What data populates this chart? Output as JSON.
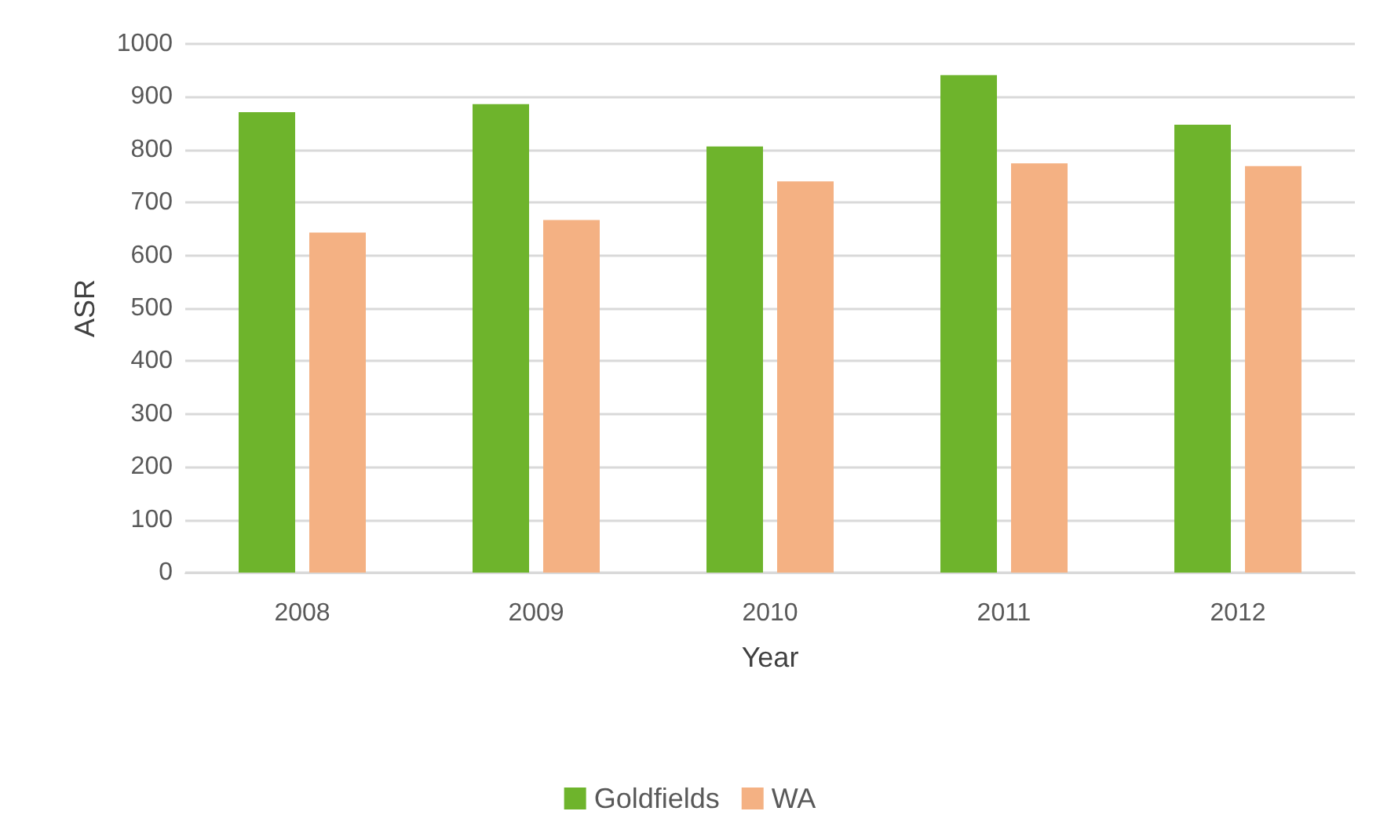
{
  "chart_data": {
    "type": "bar",
    "xlabel": "Year",
    "ylabel": "ASR",
    "categories": [
      "2008",
      "2009",
      "2010",
      "2011",
      "2012"
    ],
    "series": [
      {
        "name": "Goldfields",
        "color": "#6eb42c",
        "values": [
          871,
          886,
          806,
          941,
          847
        ]
      },
      {
        "name": "WA",
        "color": "#f4b183",
        "values": [
          643,
          667,
          740,
          774,
          769
        ]
      }
    ],
    "ylim": [
      0,
      1000
    ],
    "yticks": [
      0,
      100,
      200,
      300,
      400,
      500,
      600,
      700,
      800,
      900,
      1000
    ],
    "grid": "y",
    "legend": "bottom"
  }
}
